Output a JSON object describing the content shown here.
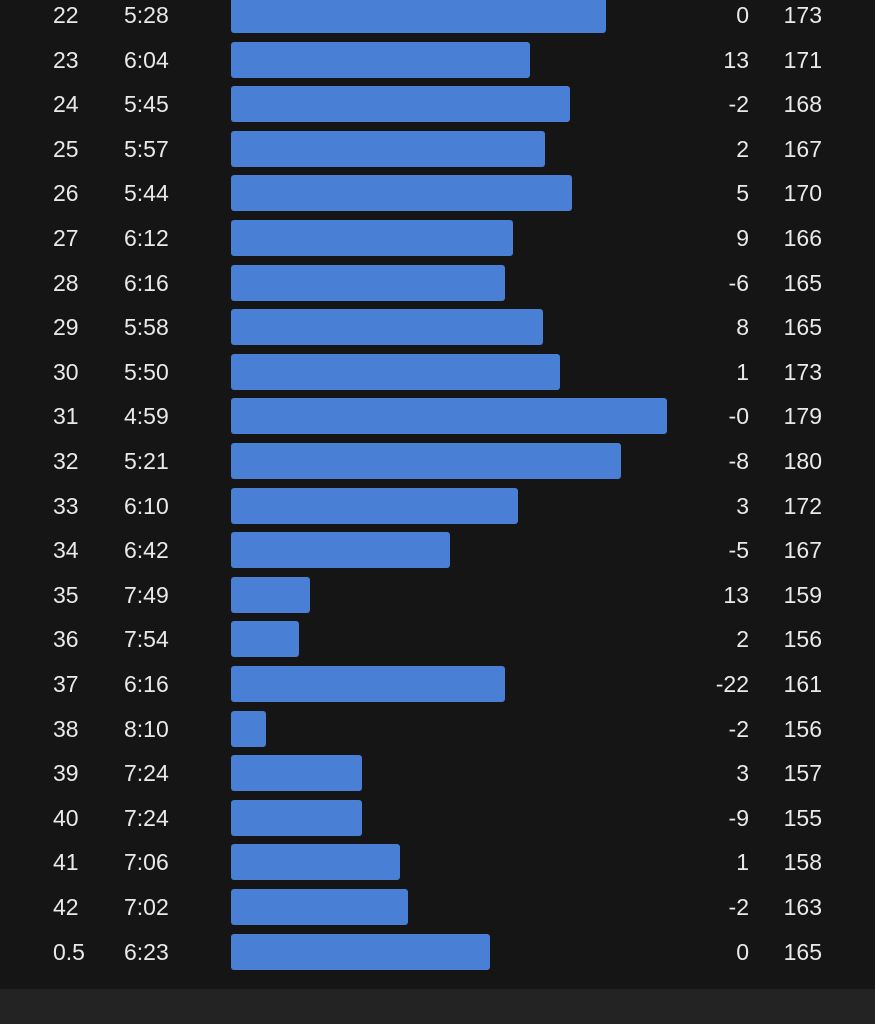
{
  "splits": [
    {
      "km": "22",
      "pace": "5:28",
      "pace_seconds": 328,
      "elev": "0",
      "hr": "173"
    },
    {
      "km": "23",
      "pace": "6:04",
      "pace_seconds": 364,
      "elev": "13",
      "hr": "171"
    },
    {
      "km": "24",
      "pace": "5:45",
      "pace_seconds": 345,
      "elev": "-2",
      "hr": "168"
    },
    {
      "km": "25",
      "pace": "5:57",
      "pace_seconds": 357,
      "elev": "2",
      "hr": "167"
    },
    {
      "km": "26",
      "pace": "5:44",
      "pace_seconds": 344,
      "elev": "5",
      "hr": "170"
    },
    {
      "km": "27",
      "pace": "6:12",
      "pace_seconds": 372,
      "elev": "9",
      "hr": "166"
    },
    {
      "km": "28",
      "pace": "6:16",
      "pace_seconds": 376,
      "elev": "-6",
      "hr": "165"
    },
    {
      "km": "29",
      "pace": "5:58",
      "pace_seconds": 358,
      "elev": "8",
      "hr": "165"
    },
    {
      "km": "30",
      "pace": "5:50",
      "pace_seconds": 350,
      "elev": "1",
      "hr": "173"
    },
    {
      "km": "31",
      "pace": "4:59",
      "pace_seconds": 299,
      "elev": "-0",
      "hr": "179"
    },
    {
      "km": "32",
      "pace": "5:21",
      "pace_seconds": 321,
      "elev": "-8",
      "hr": "180"
    },
    {
      "km": "33",
      "pace": "6:10",
      "pace_seconds": 370,
      "elev": "3",
      "hr": "172"
    },
    {
      "km": "34",
      "pace": "6:42",
      "pace_seconds": 402,
      "elev": "-5",
      "hr": "167"
    },
    {
      "km": "35",
      "pace": "7:49",
      "pace_seconds": 469,
      "elev": "13",
      "hr": "159"
    },
    {
      "km": "36",
      "pace": "7:54",
      "pace_seconds": 474,
      "elev": "2",
      "hr": "156"
    },
    {
      "km": "37",
      "pace": "6:16",
      "pace_seconds": 376,
      "elev": "-22",
      "hr": "161"
    },
    {
      "km": "38",
      "pace": "8:10",
      "pace_seconds": 490,
      "elev": "-2",
      "hr": "156"
    },
    {
      "km": "39",
      "pace": "7:24",
      "pace_seconds": 444,
      "elev": "3",
      "hr": "157"
    },
    {
      "km": "40",
      "pace": "7:24",
      "pace_seconds": 444,
      "elev": "-9",
      "hr": "155"
    },
    {
      "km": "41",
      "pace": "7:06",
      "pace_seconds": 426,
      "elev": "1",
      "hr": "158"
    },
    {
      "km": "42",
      "pace": "7:02",
      "pace_seconds": 422,
      "elev": "-2",
      "hr": "163"
    },
    {
      "km": "0.5",
      "pace": "6:23",
      "pace_seconds": 383,
      "elev": "0",
      "hr": "165"
    }
  ],
  "colors": {
    "background": "#151515",
    "bar": "#4a7fd6",
    "text": "#e9e9e9",
    "footer": "#232323"
  }
}
